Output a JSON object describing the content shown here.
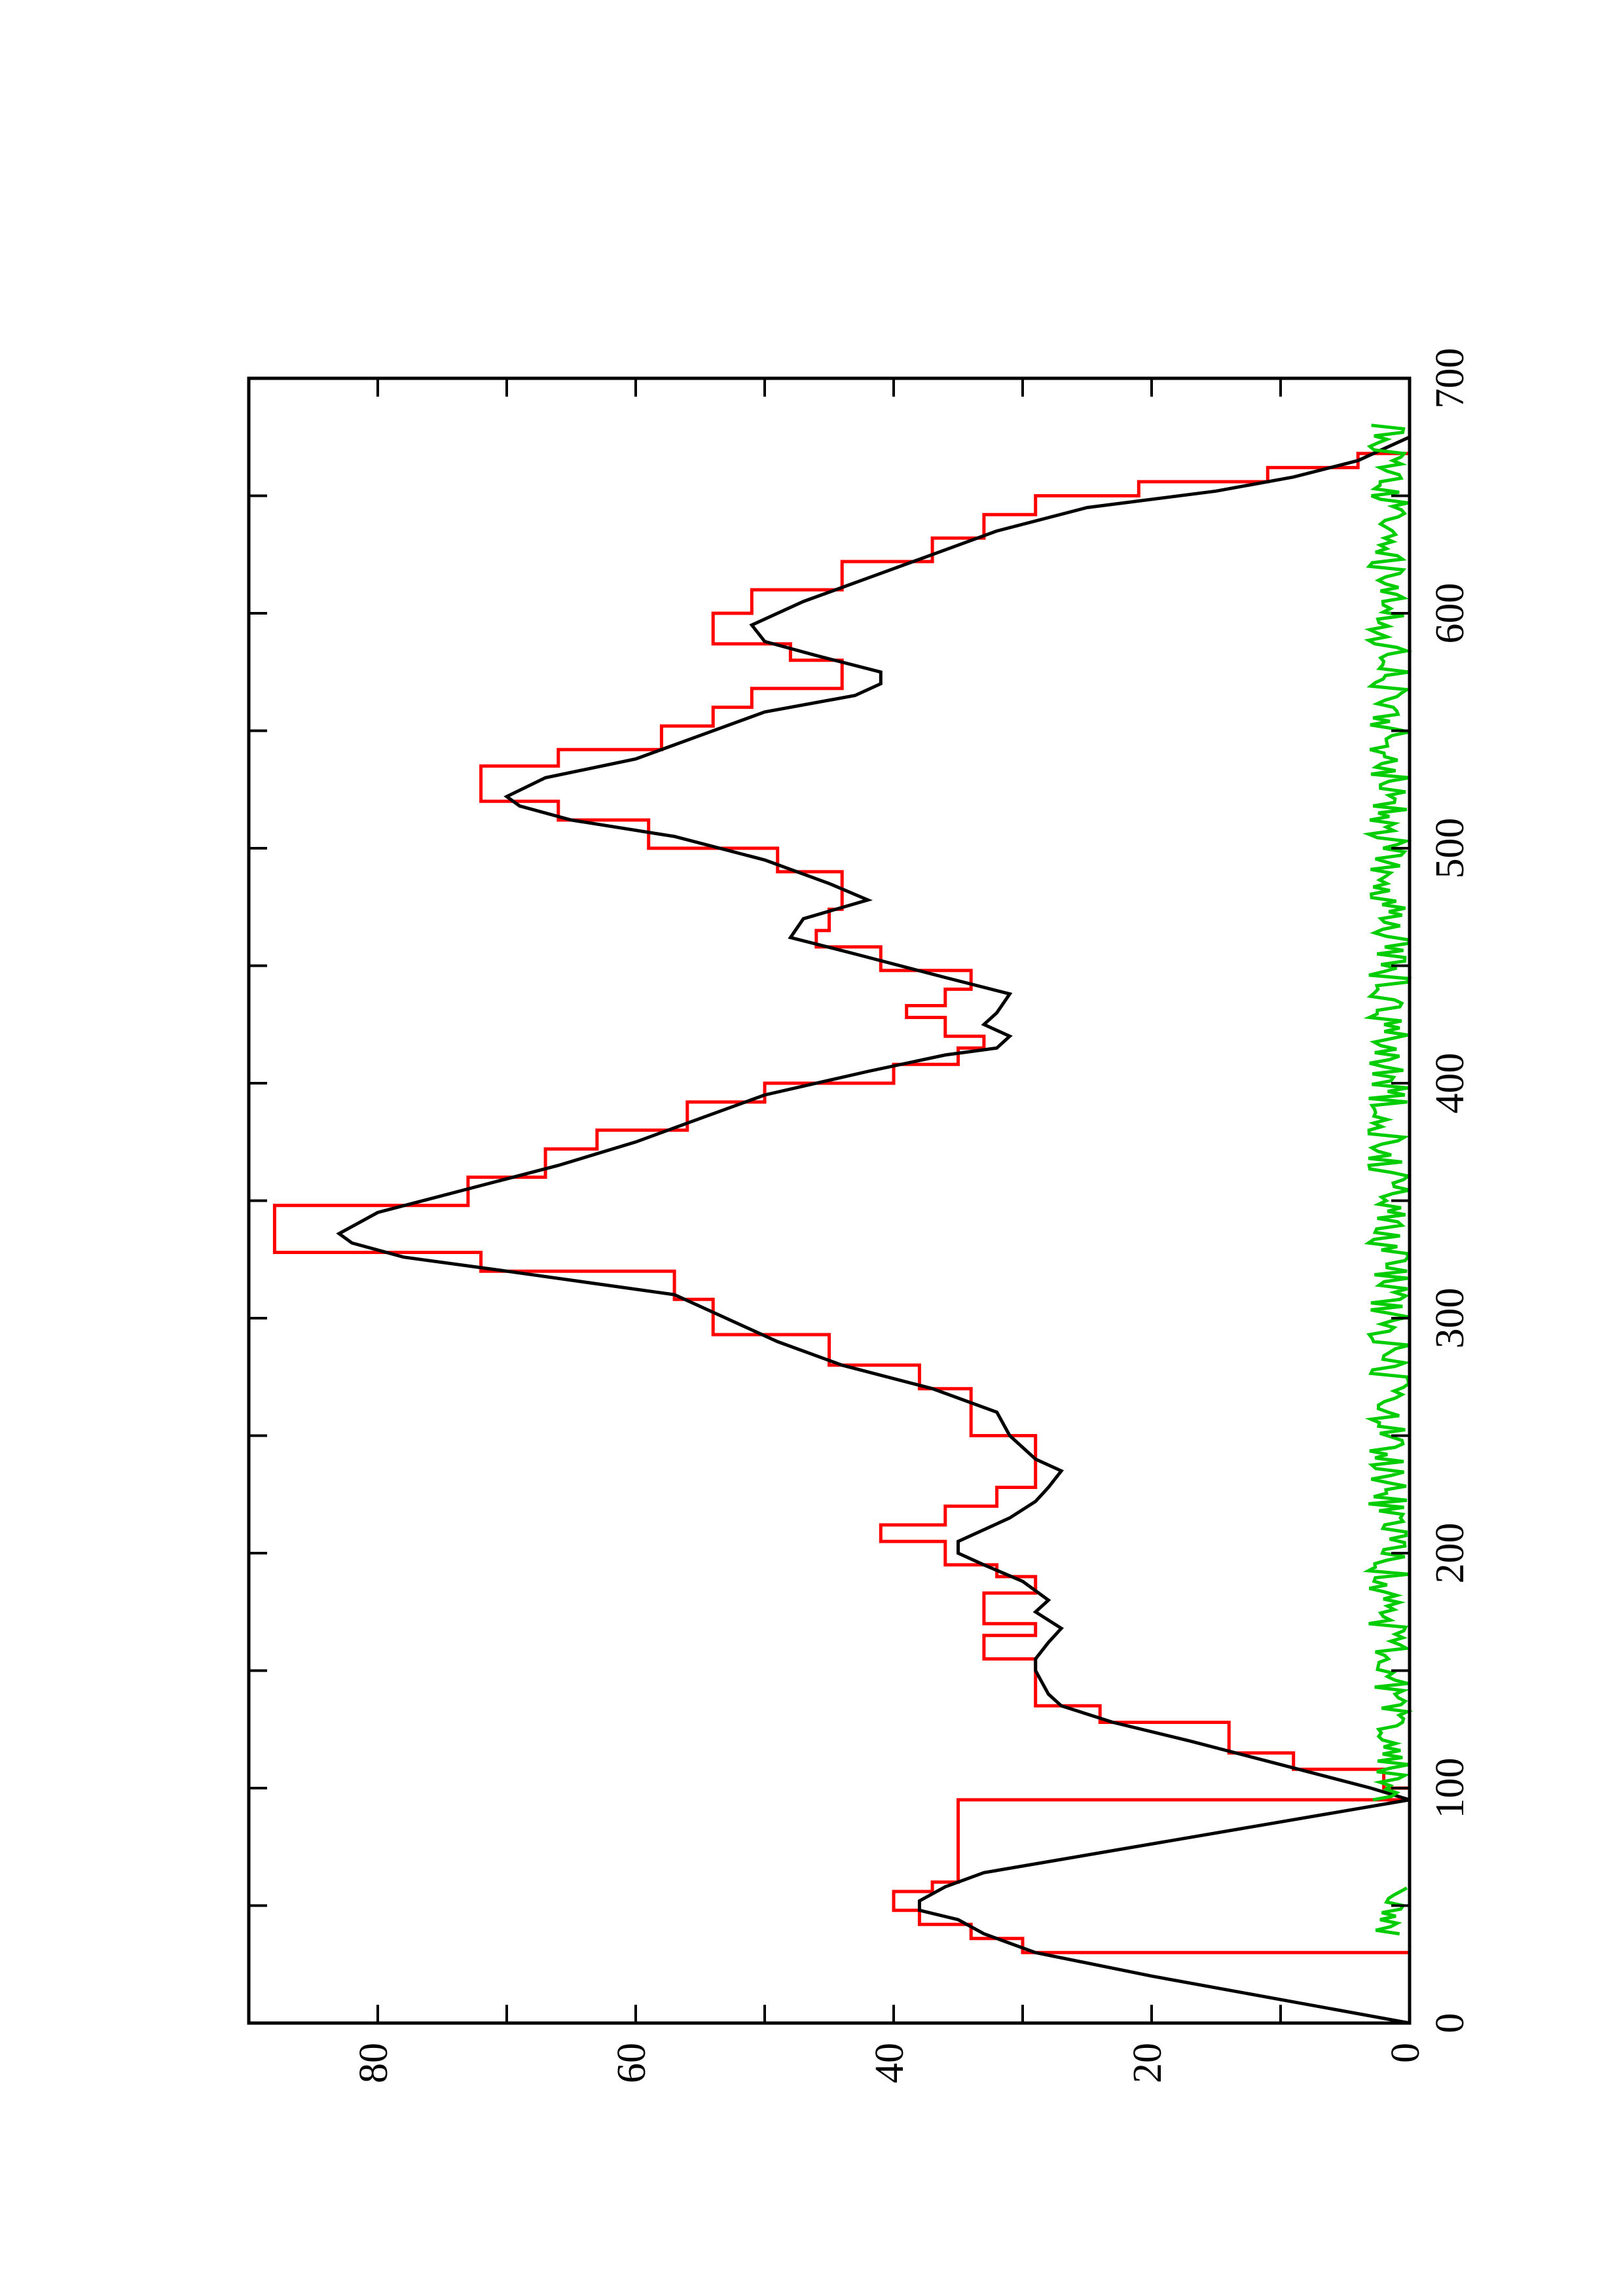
{
  "chart_data": {
    "type": "line",
    "title": "",
    "xlabel": "",
    "ylabel": "",
    "xlim": [
      0,
      700
    ],
    "ylim": [
      0,
      90
    ],
    "orientation": "rotated-90-counterclockwise",
    "grid": false,
    "legend": "none",
    "x_ticks": [
      {
        "value": 0,
        "label": "0"
      },
      {
        "value": 100,
        "label": "100"
      },
      {
        "value": 200,
        "label": "200"
      },
      {
        "value": 300,
        "label": "300"
      },
      {
        "value": 400,
        "label": "400"
      },
      {
        "value": 500,
        "label": "500"
      },
      {
        "value": 600,
        "label": "600"
      },
      {
        "value": 700,
        "label": "700"
      }
    ],
    "x_minor_ticks": [
      50,
      150,
      250,
      350,
      450,
      550,
      650
    ],
    "y_ticks": [
      {
        "value": 0,
        "label": "0"
      },
      {
        "value": 20,
        "label": "20"
      },
      {
        "value": 40,
        "label": "40"
      },
      {
        "value": 60,
        "label": "60"
      },
      {
        "value": 80,
        "label": "80"
      }
    ],
    "y_minor_ticks": [
      10,
      30,
      50,
      70,
      90
    ],
    "series": [
      {
        "color": "#ff0000",
        "step": true,
        "points": [
          [
            0,
            0
          ],
          [
            30,
            30
          ],
          [
            36,
            34
          ],
          [
            42,
            38
          ],
          [
            48,
            40
          ],
          [
            56,
            37
          ],
          [
            60,
            35
          ],
          [
            95,
            0
          ],
          [
            100,
            2
          ],
          [
            108,
            9
          ],
          [
            115,
            14
          ],
          [
            128,
            24
          ],
          [
            135,
            29
          ],
          [
            150,
            29
          ],
          [
            155,
            33
          ],
          [
            165,
            29
          ],
          [
            170,
            33
          ],
          [
            178,
            33
          ],
          [
            183,
            29
          ],
          [
            190,
            32
          ],
          [
            195,
            36
          ],
          [
            205,
            41
          ],
          [
            212,
            36
          ],
          [
            220,
            32
          ],
          [
            228,
            29
          ],
          [
            240,
            29
          ],
          [
            250,
            34
          ],
          [
            265,
            34
          ],
          [
            270,
            38
          ],
          [
            280,
            45
          ],
          [
            293,
            54
          ],
          [
            308,
            57
          ],
          [
            320,
            72
          ],
          [
            328,
            88
          ],
          [
            340,
            88
          ],
          [
            348,
            73
          ],
          [
            360,
            67
          ],
          [
            372,
            63
          ],
          [
            380,
            56
          ],
          [
            392,
            50
          ],
          [
            400,
            40
          ],
          [
            408,
            35
          ],
          [
            415,
            33
          ],
          [
            420,
            36
          ],
          [
            428,
            39
          ],
          [
            433,
            36
          ],
          [
            440,
            34
          ],
          [
            448,
            41
          ],
          [
            458,
            46
          ],
          [
            465,
            45
          ],
          [
            474,
            44
          ],
          [
            480,
            44
          ],
          [
            490,
            49
          ],
          [
            500,
            59
          ],
          [
            512,
            66
          ],
          [
            520,
            72
          ],
          [
            528,
            72
          ],
          [
            535,
            66
          ],
          [
            542,
            58
          ],
          [
            552,
            54
          ],
          [
            560,
            51
          ],
          [
            568,
            44
          ],
          [
            574,
            44
          ],
          [
            580,
            48
          ],
          [
            587,
            54
          ],
          [
            595,
            54
          ],
          [
            600,
            51
          ],
          [
            610,
            44
          ],
          [
            622,
            37
          ],
          [
            632,
            33
          ],
          [
            642,
            29
          ],
          [
            650,
            21
          ],
          [
            656,
            11
          ],
          [
            662,
            4
          ],
          [
            668,
            0
          ]
        ]
      },
      {
        "color": "#000000",
        "step": false,
        "points": [
          [
            0,
            0
          ],
          [
            20,
            20
          ],
          [
            30,
            29
          ],
          [
            38,
            33
          ],
          [
            44,
            35
          ],
          [
            48,
            38
          ],
          [
            52,
            38
          ],
          [
            58,
            36
          ],
          [
            64,
            33
          ],
          [
            95,
            0
          ],
          [
            100,
            3
          ],
          [
            110,
            10
          ],
          [
            120,
            17
          ],
          [
            128,
            23
          ],
          [
            135,
            27
          ],
          [
            140,
            28
          ],
          [
            150,
            29
          ],
          [
            155,
            29
          ],
          [
            162,
            28
          ],
          [
            168,
            27
          ],
          [
            175,
            29
          ],
          [
            180,
            28
          ],
          [
            188,
            30
          ],
          [
            195,
            33
          ],
          [
            200,
            35
          ],
          [
            205,
            35
          ],
          [
            215,
            31
          ],
          [
            222,
            29
          ],
          [
            228,
            28
          ],
          [
            235,
            27
          ],
          [
            240,
            29
          ],
          [
            250,
            31
          ],
          [
            260,
            32
          ],
          [
            270,
            37
          ],
          [
            280,
            44
          ],
          [
            290,
            49
          ],
          [
            300,
            53
          ],
          [
            310,
            57
          ],
          [
            320,
            70
          ],
          [
            326,
            78
          ],
          [
            332,
            82
          ],
          [
            336,
            83
          ],
          [
            345,
            80
          ],
          [
            355,
            73
          ],
          [
            365,
            66
          ],
          [
            375,
            60
          ],
          [
            385,
            55
          ],
          [
            395,
            50
          ],
          [
            405,
            42
          ],
          [
            412,
            36
          ],
          [
            415,
            32
          ],
          [
            420,
            31
          ],
          [
            425,
            33
          ],
          [
            430,
            32
          ],
          [
            438,
            31
          ],
          [
            445,
            36
          ],
          [
            455,
            43
          ],
          [
            462,
            48
          ],
          [
            470,
            47
          ],
          [
            478,
            42
          ],
          [
            485,
            45
          ],
          [
            495,
            50
          ],
          [
            505,
            57
          ],
          [
            512,
            65
          ],
          [
            518,
            69
          ],
          [
            522,
            70
          ],
          [
            530,
            67
          ],
          [
            538,
            60
          ],
          [
            548,
            55
          ],
          [
            558,
            50
          ],
          [
            565,
            43
          ],
          [
            570,
            41
          ],
          [
            575,
            41
          ],
          [
            582,
            46
          ],
          [
            588,
            50
          ],
          [
            595,
            51
          ],
          [
            605,
            47
          ],
          [
            615,
            42
          ],
          [
            625,
            37
          ],
          [
            635,
            32
          ],
          [
            645,
            25
          ],
          [
            652,
            15
          ],
          [
            658,
            9
          ],
          [
            665,
            4
          ],
          [
            670,
            2
          ],
          [
            675,
            0
          ]
        ]
      },
      {
        "color": "#00cc00",
        "step": false,
        "noise_band": {
          "segments": [
            [
              38,
              58
            ],
            [
              95,
              680
            ]
          ],
          "max": 3.2,
          "seed": 17
        }
      }
    ]
  }
}
